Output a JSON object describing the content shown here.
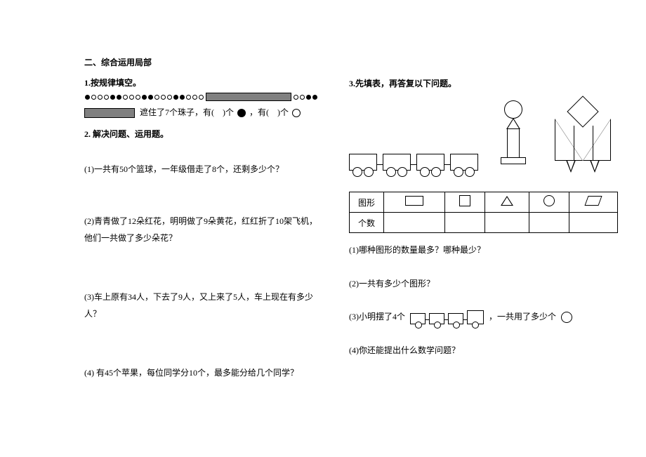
{
  "section_title": "二、综合运用局部",
  "q1": {
    "title": "1.按规律填空。",
    "beads_pattern": [
      "f",
      "o",
      "o",
      "o",
      "f",
      "f",
      "o",
      "o",
      "o",
      "f",
      "f",
      "o",
      "o",
      "o",
      "f",
      "f",
      "o",
      "o",
      "o"
    ],
    "after_beads": [
      "o",
      "o",
      "f",
      "f"
    ],
    "line2_pre": "遮住了7个珠子，有(　)个",
    "line2_mid": "，有(　)个"
  },
  "q2": {
    "title": "2. 解决问题、运用题。",
    "items": [
      "(1)一共有50个篮球，一年级借走了8个，还剩多少个？",
      "(2)青青做了12朵红花，明明做了9朵黄花，红红折了10架飞机，他们一共做了多少朵花？",
      "(3)车上原有34人，下去了9人，又上来了5人，车上现在有多少人？",
      "(4) 有45个苹果，每位同学分10个，最多能分给几个同学？"
    ]
  },
  "q3": {
    "title": "3.先填表，再答复以下问题。",
    "table_row1_label": "图形",
    "table_row2_label": "个数",
    "sub1": "(1)哪种图形的数量最多？哪种最少？",
    "sub2": "(2)一共有多少个图形？",
    "sub3_pre": "(3)小明摆了4个",
    "sub3_post": "，一共用了多少个",
    "sub4": "(4)你还能提出什么数学问题？"
  }
}
